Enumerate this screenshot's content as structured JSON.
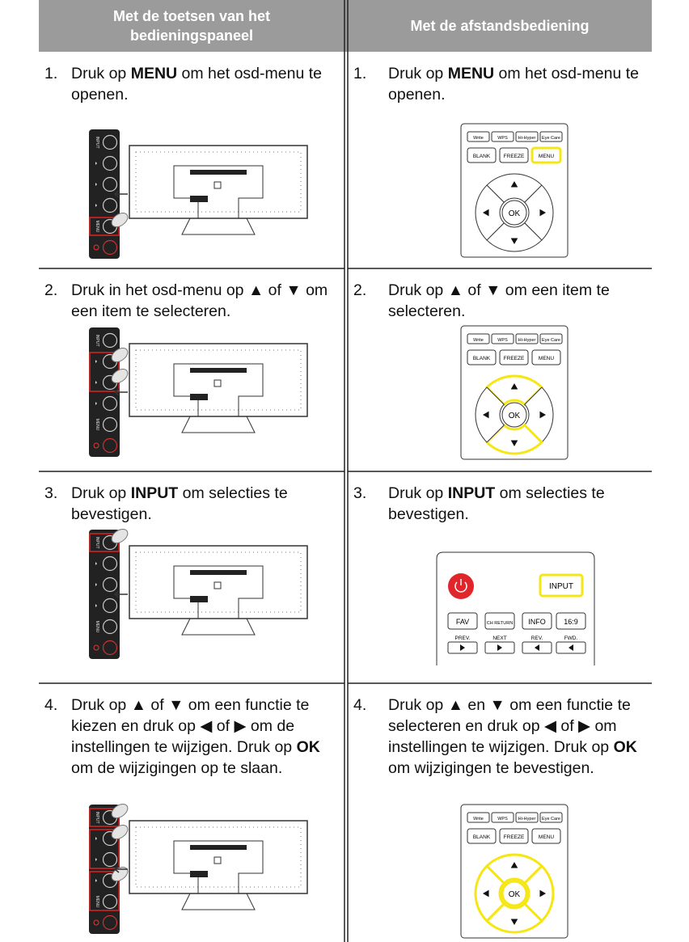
{
  "header": {
    "col1": "Met de toetsen van het bedieningspaneel",
    "col2": "Met de afstandsbediening"
  },
  "rows": [
    {
      "left": {
        "num": "1.",
        "parts": [
          {
            "t": "Druk op "
          },
          {
            "t": "MENU",
            "b": true
          },
          {
            "t": " om het osd-menu te openen."
          }
        ]
      },
      "right": {
        "num": "1.",
        "parts": [
          {
            "t": "Druk op "
          },
          {
            "t": "MENU",
            "b": true
          },
          {
            "t": " om het osd-menu te openen."
          }
        ]
      }
    },
    {
      "left": {
        "num": "2.",
        "parts": [
          {
            "t": "Druk in het osd-menu op ▲ of ▼ om een item te selecteren."
          }
        ]
      },
      "right": {
        "num": "2.",
        "parts": [
          {
            "t": "Druk op ▲ of ▼ om een item te selecteren."
          }
        ]
      }
    },
    {
      "left": {
        "num": "3.",
        "parts": [
          {
            "t": "Druk op "
          },
          {
            "t": "INPUT",
            "b": true
          },
          {
            "t": " om selecties te bevestigen."
          }
        ]
      },
      "right": {
        "num": "3.",
        "parts": [
          {
            "t": "Druk op "
          },
          {
            "t": "INPUT",
            "b": true
          },
          {
            "t": " om selecties te bevestigen."
          }
        ]
      }
    },
    {
      "left": {
        "num": "4.",
        "parts": [
          {
            "t": "Druk op ▲ of ▼ om een functie te kiezen en druk op ◀ of ▶ om de instellingen te wijzigen. Druk op "
          },
          {
            "t": "OK",
            "b": true
          },
          {
            "t": " om de wijzigingen op te slaan."
          }
        ]
      },
      "right": {
        "num": "4.",
        "parts": [
          {
            "t": "Druk op ▲ en ▼ om een functie te selecteren en druk op ◀ of ▶ om instellingen te wijzigen. Druk op "
          },
          {
            "t": "OK",
            "b": true
          },
          {
            "t": " om wijzigingen te bevestigen."
          }
        ]
      }
    }
  ],
  "panel_labels": [
    "INPUT",
    "MENU"
  ],
  "remote_labels": {
    "top": [
      "Write",
      "WPS",
      "Hi-Hyper",
      "Eye Care"
    ],
    "mid": [
      "BLANK",
      "FREEZE",
      "MENU"
    ],
    "ok": "OK"
  },
  "input_remote_labels": {
    "input": "INPUT",
    "keys": [
      "FAV",
      "CH RETURN",
      "INFO",
      "16:9"
    ],
    "nav": [
      "PREV.",
      "NEXT",
      "REV.",
      "FWD."
    ]
  }
}
